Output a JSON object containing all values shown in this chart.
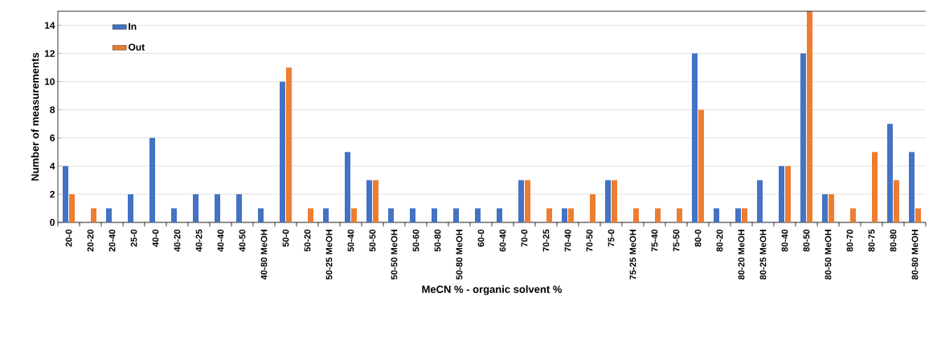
{
  "chart_data": {
    "type": "bar",
    "xlabel": "MeCN % - organic solvent %",
    "ylabel": "Number of measurements",
    "categories": [
      "20-0",
      "20-20",
      "20-40",
      "25-0",
      "40-0",
      "40-20",
      "40-25",
      "40-40",
      "40-50",
      "40-80 MeOH",
      "50-0",
      "50-20",
      "50-25 MeOH",
      "50-40",
      "50-50",
      "50-50 MeOH",
      "50-60",
      "50-80",
      "50-80 MeOH",
      "60-0",
      "60-40",
      "70-0",
      "70-25",
      "70-40",
      "70-50",
      "75-0",
      "75-25 MeOH",
      "75-40",
      "75-50",
      "80-0",
      "80-20",
      "80-20 MeOH",
      "80-25 MeOH",
      "80-40",
      "80-50",
      "80-50 MeOH",
      "80-70",
      "80-75",
      "80-80",
      "80-80 MeOH"
    ],
    "series": [
      {
        "name": "In",
        "color": "#4472c4",
        "values": [
          4,
          0,
          1,
          2,
          6,
          1,
          2,
          2,
          2,
          1,
          10,
          0,
          1,
          5,
          3,
          1,
          1,
          1,
          1,
          1,
          1,
          3,
          0,
          1,
          0,
          3,
          0,
          0,
          0,
          12,
          1,
          1,
          3,
          4,
          12,
          2,
          0,
          0,
          7,
          5
        ]
      },
      {
        "name": "Out",
        "color": "#ed7d31",
        "values": [
          2,
          1,
          0,
          0,
          0,
          0,
          0,
          0,
          0,
          0,
          11,
          1,
          0,
          1,
          3,
          0,
          0,
          0,
          0,
          0,
          0,
          3,
          1,
          1,
          2,
          3,
          1,
          1,
          1,
          8,
          0,
          1,
          0,
          4,
          15,
          2,
          1,
          5,
          3,
          1
        ]
      }
    ],
    "ylim": [
      0,
      15
    ],
    "yticks": [
      0,
      2,
      4,
      6,
      8,
      10,
      12,
      14
    ],
    "grid": "y",
    "legend": "top left"
  }
}
